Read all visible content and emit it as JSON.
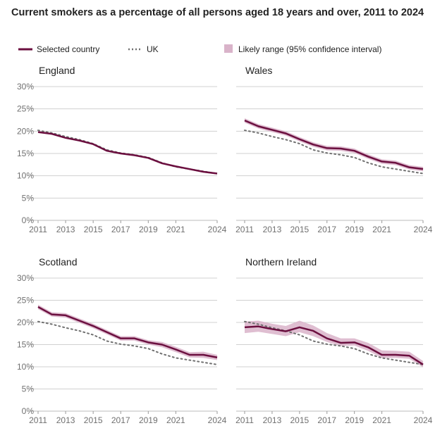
{
  "chart_data": {
    "type": "line",
    "title": "Current smokers as a percentage of all persons aged 18 years and over, 2011 to 2024",
    "legend": {
      "placement": "top",
      "entries": [
        "Selected country",
        "UK",
        "Likely range (95% confidence interval)"
      ]
    },
    "x": [
      2011,
      2012,
      2013,
      2014,
      2015,
      2016,
      2017,
      2018,
      2019,
      2020,
      2021,
      2022,
      2023,
      2024
    ],
    "x_ticks": [
      "2011",
      "2013",
      "2015",
      "2017",
      "2019",
      "2021",
      "2024"
    ],
    "y_ticks": [
      "0%",
      "5%",
      "10%",
      "15%",
      "20%",
      "25%",
      "30%"
    ],
    "ylim": [
      0,
      30
    ],
    "grid": true,
    "colors": {
      "country": "#6b0f3f",
      "uk": "#707070",
      "ci": "#d9b3c9",
      "grid": "#d0d0d0"
    },
    "uk": [
      20.2,
      19.6,
      18.8,
      18.1,
      17.2,
      15.8,
      15.1,
      14.7,
      14.1,
      12.9,
      12.0,
      11.5,
      11.0,
      10.5
    ],
    "panels": [
      {
        "name": "England",
        "values": [
          19.8,
          19.4,
          18.5,
          17.9,
          17.1,
          15.6,
          15.0,
          14.6,
          14.0,
          12.8,
          12.1,
          11.5,
          10.9,
          10.5
        ],
        "ci_low": [
          19.6,
          19.2,
          18.3,
          17.7,
          16.9,
          15.4,
          14.8,
          14.4,
          13.8,
          12.6,
          11.9,
          11.3,
          10.7,
          10.3
        ],
        "ci_high": [
          20.0,
          19.6,
          18.7,
          18.1,
          17.3,
          15.8,
          15.2,
          14.8,
          14.2,
          13.0,
          12.3,
          11.7,
          11.1,
          10.7
        ]
      },
      {
        "name": "Wales",
        "values": [
          22.4,
          21.1,
          20.3,
          19.5,
          18.2,
          17.0,
          16.2,
          16.1,
          15.6,
          14.3,
          13.2,
          12.9,
          11.9,
          11.5
        ],
        "ci_low": [
          21.9,
          20.6,
          19.8,
          19.0,
          17.7,
          16.5,
          15.7,
          15.6,
          15.1,
          13.8,
          12.7,
          12.4,
          11.4,
          11.0
        ],
        "ci_high": [
          22.9,
          21.6,
          20.8,
          20.0,
          18.7,
          17.5,
          16.7,
          16.6,
          16.1,
          14.8,
          13.7,
          13.4,
          12.4,
          12.0
        ]
      },
      {
        "name": "Scotland",
        "values": [
          23.5,
          21.8,
          21.6,
          20.4,
          19.2,
          17.8,
          16.4,
          16.4,
          15.5,
          15.0,
          13.9,
          12.7,
          12.7,
          12.1
        ],
        "ci_low": [
          23.0,
          21.3,
          21.1,
          19.9,
          18.7,
          17.3,
          15.9,
          15.9,
          15.0,
          14.4,
          13.3,
          12.1,
          12.0,
          11.5
        ],
        "ci_high": [
          24.0,
          22.3,
          22.1,
          20.9,
          19.7,
          18.3,
          16.9,
          16.9,
          16.0,
          15.6,
          14.5,
          13.3,
          13.4,
          12.7
        ]
      },
      {
        "name": "Northern Ireland",
        "values": [
          18.9,
          19.1,
          18.5,
          18.0,
          18.9,
          18.1,
          16.4,
          15.4,
          15.5,
          14.4,
          12.7,
          12.7,
          12.5,
          10.5
        ],
        "ci_low": [
          17.6,
          17.9,
          17.4,
          16.9,
          17.8,
          16.9,
          15.6,
          14.7,
          14.8,
          13.6,
          12.0,
          12.0,
          11.8,
          9.9
        ],
        "ci_high": [
          20.2,
          20.4,
          19.7,
          19.2,
          20.4,
          19.3,
          17.6,
          16.4,
          16.4,
          15.4,
          13.7,
          13.6,
          13.4,
          11.3
        ]
      }
    ]
  }
}
